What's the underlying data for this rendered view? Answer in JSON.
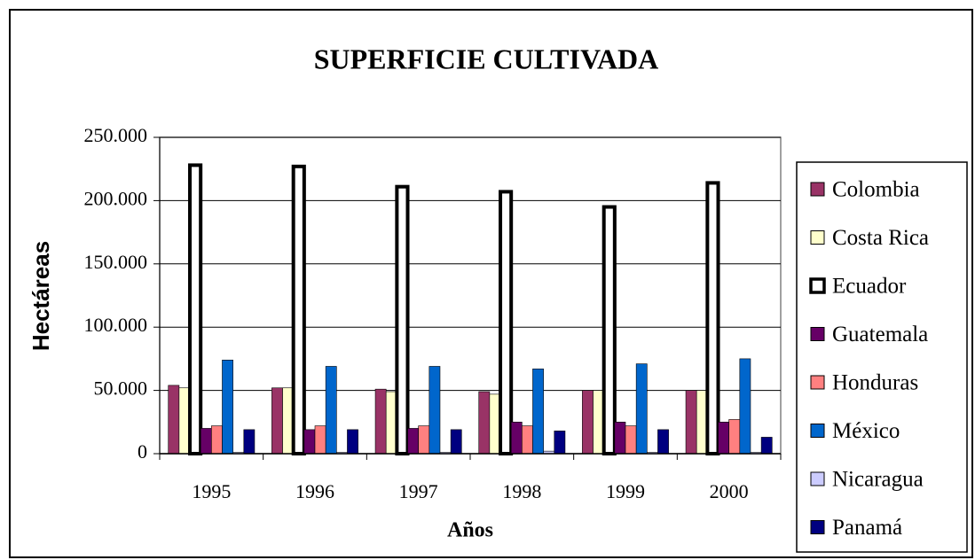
{
  "chart_data": {
    "type": "bar",
    "title": "SUPERFICIE CULTIVADA",
    "y_label": "Hectáreas",
    "x_label": "Años",
    "categories": [
      "1995",
      "1996",
      "1997",
      "1998",
      "1999",
      "2000"
    ],
    "series": [
      {
        "name": "Colombia",
        "color": "#993366",
        "values": [
          54000,
          52000,
          51000,
          49000,
          50000,
          50000
        ]
      },
      {
        "name": "Costa Rica",
        "color": "#ffffcc",
        "values": [
          52000,
          52000,
          49000,
          47000,
          50000,
          50000
        ]
      },
      {
        "name": "Ecuador",
        "color": "#ffffff",
        "edgecolor": "#000000",
        "values": [
          228000,
          227000,
          211000,
          207000,
          195000,
          214000
        ]
      },
      {
        "name": "Guatemala",
        "color": "#660066",
        "values": [
          20000,
          19000,
          20000,
          25000,
          25000,
          25000
        ]
      },
      {
        "name": "Honduras",
        "color": "#ff8080",
        "values": [
          22000,
          22000,
          22000,
          22000,
          22000,
          27000
        ]
      },
      {
        "name": "México",
        "color": "#0066cc",
        "values": [
          74000,
          69000,
          69000,
          67000,
          71000,
          75000
        ]
      },
      {
        "name": "Nicaragua",
        "color": "#ccccff",
        "values": [
          1000,
          1000,
          1000,
          2000,
          1000,
          1000
        ]
      },
      {
        "name": "Panamá",
        "color": "#000080",
        "values": [
          19000,
          19000,
          19000,
          18000,
          19000,
          13000
        ]
      }
    ],
    "ylim": [
      0,
      250000
    ],
    "yticks": [
      0,
      {
        "value": 50000,
        "label": "50.000"
      },
      {
        "value": 100000,
        "label": "100.000"
      },
      {
        "value": 150000,
        "label": "150.000"
      },
      {
        "value": 200000,
        "label": "200.000"
      },
      {
        "value": 250000,
        "label": "250.000"
      }
    ],
    "grid": true,
    "legend": "right"
  }
}
